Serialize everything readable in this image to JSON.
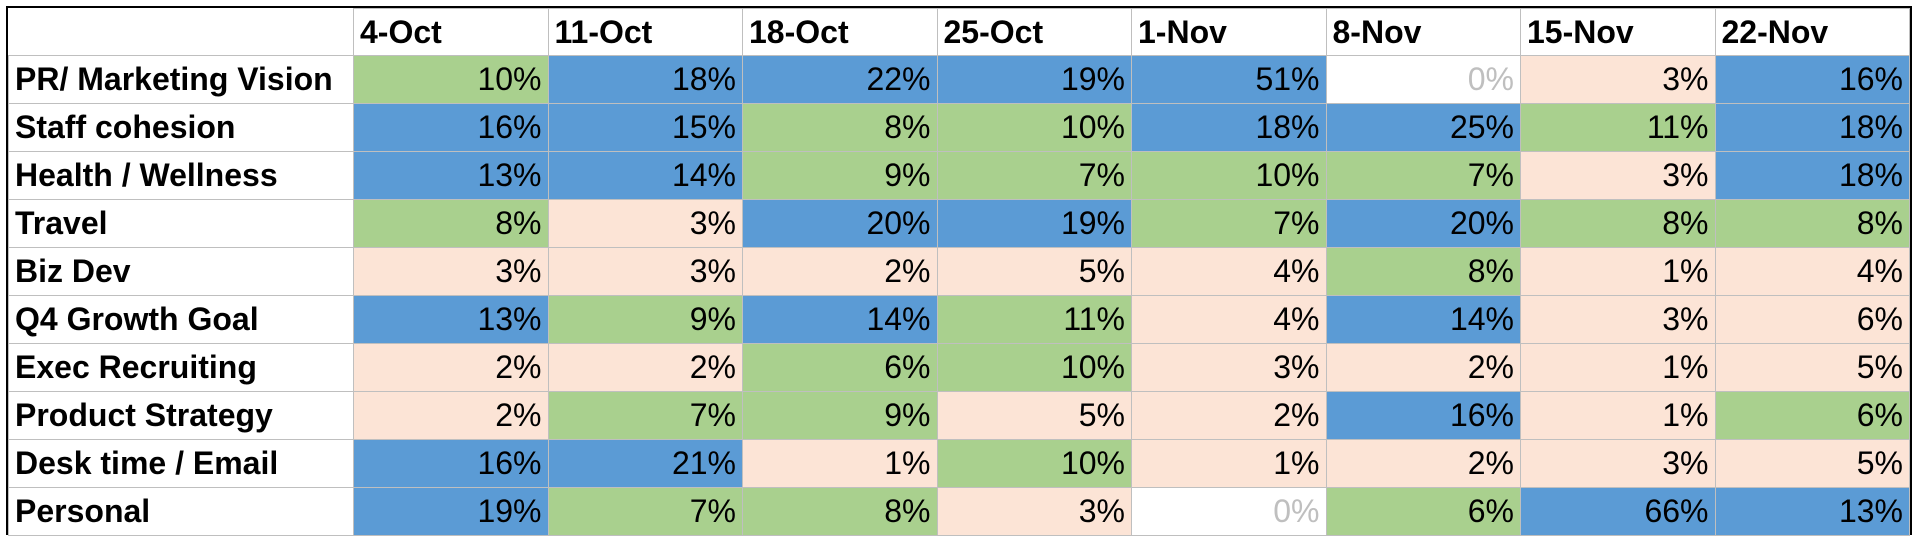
{
  "chart_data": {
    "type": "heatmap",
    "title": "",
    "columns": [
      "4-Oct",
      "11-Oct",
      "18-Oct",
      "25-Oct",
      "1-Nov",
      "8-Nov",
      "15-Nov",
      "22-Nov"
    ],
    "rows": [
      {
        "label": "PR/ Marketing Vision",
        "values": [
          "10%",
          "18%",
          "22%",
          "19%",
          "51%",
          "0%",
          "3%",
          "16%"
        ]
      },
      {
        "label": "Staff cohesion",
        "values": [
          "16%",
          "15%",
          "8%",
          "10%",
          "18%",
          "25%",
          "11%",
          "18%"
        ]
      },
      {
        "label": "Health / Wellness",
        "values": [
          "13%",
          "14%",
          "9%",
          "7%",
          "10%",
          "7%",
          "3%",
          "18%"
        ]
      },
      {
        "label": "Travel",
        "values": [
          "8%",
          "3%",
          "20%",
          "19%",
          "7%",
          "20%",
          "8%",
          "8%"
        ]
      },
      {
        "label": "Biz Dev",
        "values": [
          "3%",
          "3%",
          "2%",
          "5%",
          "4%",
          "8%",
          "1%",
          "4%"
        ]
      },
      {
        "label": "Q4 Growth Goal",
        "values": [
          "13%",
          "9%",
          "14%",
          "11%",
          "4%",
          "14%",
          "3%",
          "6%"
        ]
      },
      {
        "label": "Exec Recruiting",
        "values": [
          "2%",
          "2%",
          "6%",
          "10%",
          "3%",
          "2%",
          "1%",
          "5%"
        ]
      },
      {
        "label": "Product Strategy",
        "values": [
          "2%",
          "7%",
          "9%",
          "5%",
          "2%",
          "16%",
          "1%",
          "6%"
        ]
      },
      {
        "label": "Desk time / Email",
        "values": [
          "16%",
          "21%",
          "1%",
          "10%",
          "1%",
          "2%",
          "3%",
          "5%"
        ]
      },
      {
        "label": "Personal",
        "values": [
          "19%",
          "7%",
          "8%",
          "3%",
          "0%",
          "6%",
          "66%",
          "13%"
        ]
      }
    ],
    "cell_colors": [
      [
        "#a9d08e",
        "#5b9bd5",
        "#5b9bd5",
        "#5b9bd5",
        "#5b9bd5",
        "#ffffff",
        "#fce4d6",
        "#5b9bd5"
      ],
      [
        "#5b9bd5",
        "#5b9bd5",
        "#a9d08e",
        "#a9d08e",
        "#5b9bd5",
        "#5b9bd5",
        "#a9d08e",
        "#5b9bd5"
      ],
      [
        "#5b9bd5",
        "#5b9bd5",
        "#a9d08e",
        "#a9d08e",
        "#a9d08e",
        "#a9d08e",
        "#fce4d6",
        "#5b9bd5"
      ],
      [
        "#a9d08e",
        "#fce4d6",
        "#5b9bd5",
        "#5b9bd5",
        "#a9d08e",
        "#5b9bd5",
        "#a9d08e",
        "#a9d08e"
      ],
      [
        "#fce4d6",
        "#fce4d6",
        "#fce4d6",
        "#fce4d6",
        "#fce4d6",
        "#a9d08e",
        "#fce4d6",
        "#fce4d6"
      ],
      [
        "#5b9bd5",
        "#a9d08e",
        "#5b9bd5",
        "#a9d08e",
        "#fce4d6",
        "#5b9bd5",
        "#fce4d6",
        "#fce4d6"
      ],
      [
        "#fce4d6",
        "#fce4d6",
        "#a9d08e",
        "#a9d08e",
        "#fce4d6",
        "#fce4d6",
        "#fce4d6",
        "#fce4d6"
      ],
      [
        "#fce4d6",
        "#a9d08e",
        "#a9d08e",
        "#fce4d6",
        "#fce4d6",
        "#5b9bd5",
        "#fce4d6",
        "#a9d08e"
      ],
      [
        "#5b9bd5",
        "#5b9bd5",
        "#fce4d6",
        "#a9d08e",
        "#fce4d6",
        "#fce4d6",
        "#fce4d6",
        "#fce4d6"
      ],
      [
        "#5b9bd5",
        "#a9d08e",
        "#a9d08e",
        "#fce4d6",
        "#ffffff",
        "#a9d08e",
        "#5b9bd5",
        "#5b9bd5"
      ]
    ]
  }
}
